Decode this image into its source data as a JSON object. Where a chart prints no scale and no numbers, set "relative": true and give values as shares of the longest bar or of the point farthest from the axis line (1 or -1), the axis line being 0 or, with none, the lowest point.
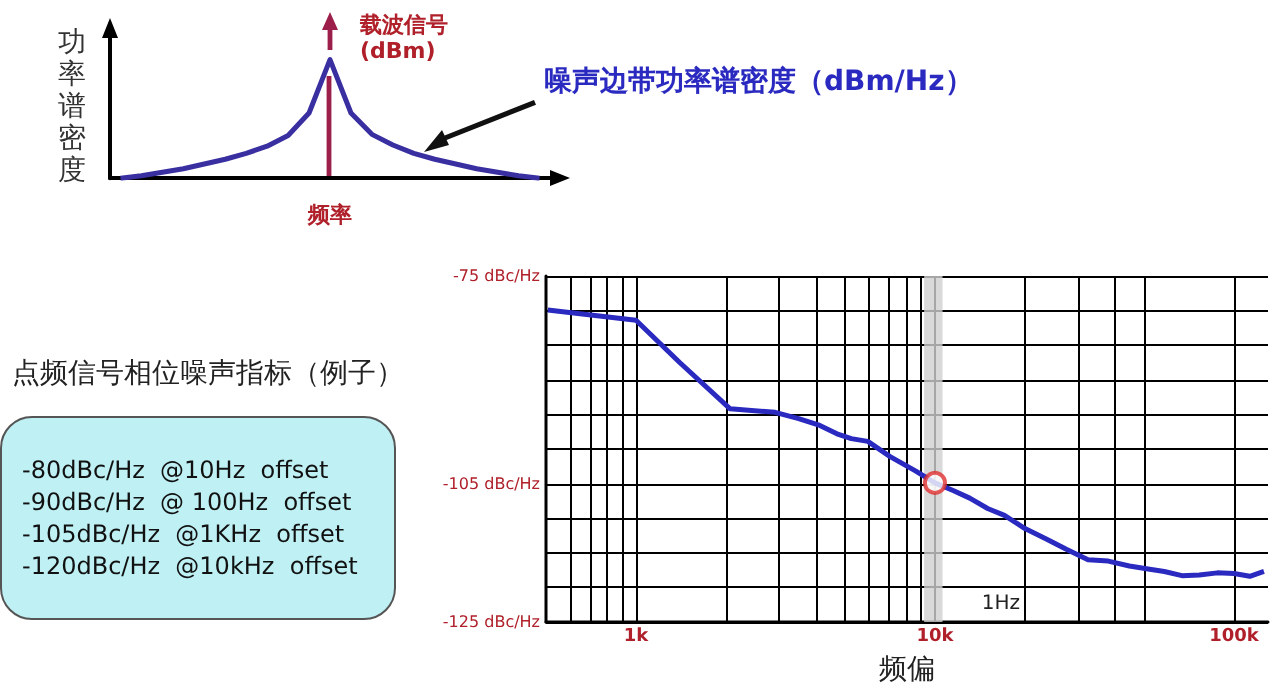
{
  "chart_data": [
    {
      "type": "line",
      "relative": true,
      "ylabel": "功率谱密度",
      "xlabel": "频率",
      "annotations": [
        "载波信号\n(dBm)",
        "噪声边带功率谱密度（dBm/Hz）"
      ],
      "marker": "none",
      "grid": false,
      "categories": [
        null,
        null,
        null,
        null,
        null,
        null,
        null,
        null,
        null,
        null,
        null,
        null,
        null,
        null,
        null,
        null,
        null,
        null,
        null,
        null,
        null
      ],
      "series": [
        {
          "color": "#3a2fa0",
          "values": [
            0,
            0.02,
            0.05,
            0.08,
            0.12,
            0.16,
            0.21,
            0.27,
            0.36,
            0.55,
            1,
            0.55,
            0.37,
            0.28,
            0.21,
            0.16,
            0.12,
            0.08,
            0.05,
            0.02,
            0
          ]
        }
      ]
    },
    {
      "type": "other",
      "title": "点频信号相位噪声指标（例子）",
      "annotations": [
        "-80dBc/Hz  @10Hz  offset",
        "-90dBc/Hz  @ 100Hz  offset",
        "-105dBc/Hz  @1KHz  offset",
        "-120dBc/Hz  @10kHz  offset"
      ]
    },
    {
      "type": "line",
      "xlabel": "频偏",
      "log": "x",
      "grid": true,
      "marker": "none",
      "annotations": [
        "1Hz"
      ],
      "xlim": [
        500,
        130000
      ],
      "xticks": [
        {
          "value": 600,
          "label": null
        },
        {
          "value": 700,
          "label": null
        },
        {
          "value": 800,
          "label": null
        },
        {
          "value": 900,
          "label": null
        },
        {
          "value": 1000,
          "label": "1k"
        },
        {
          "value": 2000,
          "label": null
        },
        {
          "value": 3000,
          "label": null
        },
        {
          "value": 4000,
          "label": null
        },
        {
          "value": 5000,
          "label": null
        },
        {
          "value": 6000,
          "label": null
        },
        {
          "value": 7000,
          "label": null
        },
        {
          "value": 8000,
          "label": null
        },
        {
          "value": 9000,
          "label": null
        },
        {
          "value": 10000,
          "label": "10k"
        },
        {
          "value": 20000,
          "label": null
        },
        {
          "value": 30000,
          "label": null
        },
        {
          "value": 40000,
          "label": null
        },
        {
          "value": 50000,
          "label": null
        },
        {
          "value": 100000,
          "label": "100k"
        }
      ],
      "ylim": [
        -125,
        -75
      ],
      "yticks": [
        {
          "value": -125,
          "label": "-125 dBc/Hz"
        },
        {
          "value": -120,
          "label": null
        },
        {
          "value": -115,
          "label": null
        },
        {
          "value": -110,
          "label": null
        },
        {
          "value": -105,
          "label": "-105 dBc/Hz"
        },
        {
          "value": -100,
          "label": null
        },
        {
          "value": -95,
          "label": null
        },
        {
          "value": -90,
          "label": null
        },
        {
          "value": -85,
          "label": null
        },
        {
          "value": -80,
          "label": null
        },
        {
          "value": -75,
          "label": "-75 dBc/Hz"
        }
      ],
      "bands": [
        {
          "axis": "x",
          "from": 9200,
          "to": 10600,
          "color": "#d0d0d0"
        }
      ],
      "series": [
        {
          "color": "#2a2ac0",
          "x": [
            507,
            1000,
            1400,
            2065,
            2920,
            3500,
            4120,
            4700,
            5250,
            5960,
            7080,
            8630,
            10000,
            11500,
            13070,
            15000,
            17080,
            20000,
            23560,
            27500,
            32500,
            38000,
            44700,
            51000,
            58500,
            67000,
            76600,
            88000,
            100000,
            113000,
            126000
          ],
          "values": [
            -79.9,
            -81.4,
            -87.5,
            -94.2,
            -94.7,
            -95.6,
            -96.6,
            -97.8,
            -98.5,
            -98.9,
            -101.1,
            -103.2,
            -104.9,
            -106.0,
            -107.1,
            -108.6,
            -109.6,
            -111.5,
            -113.0,
            -114.5,
            -116.0,
            -116.2,
            -116.9,
            -117.3,
            -117.7,
            -118.3,
            -118.2,
            -117.9,
            -118.0,
            -118.4,
            -117.7
          ]
        },
        {
          "type": "scatter",
          "marker": "circle",
          "color": "#e03030",
          "x": [
            10000
          ],
          "values": [
            -104.9
          ]
        }
      ]
    }
  ]
}
